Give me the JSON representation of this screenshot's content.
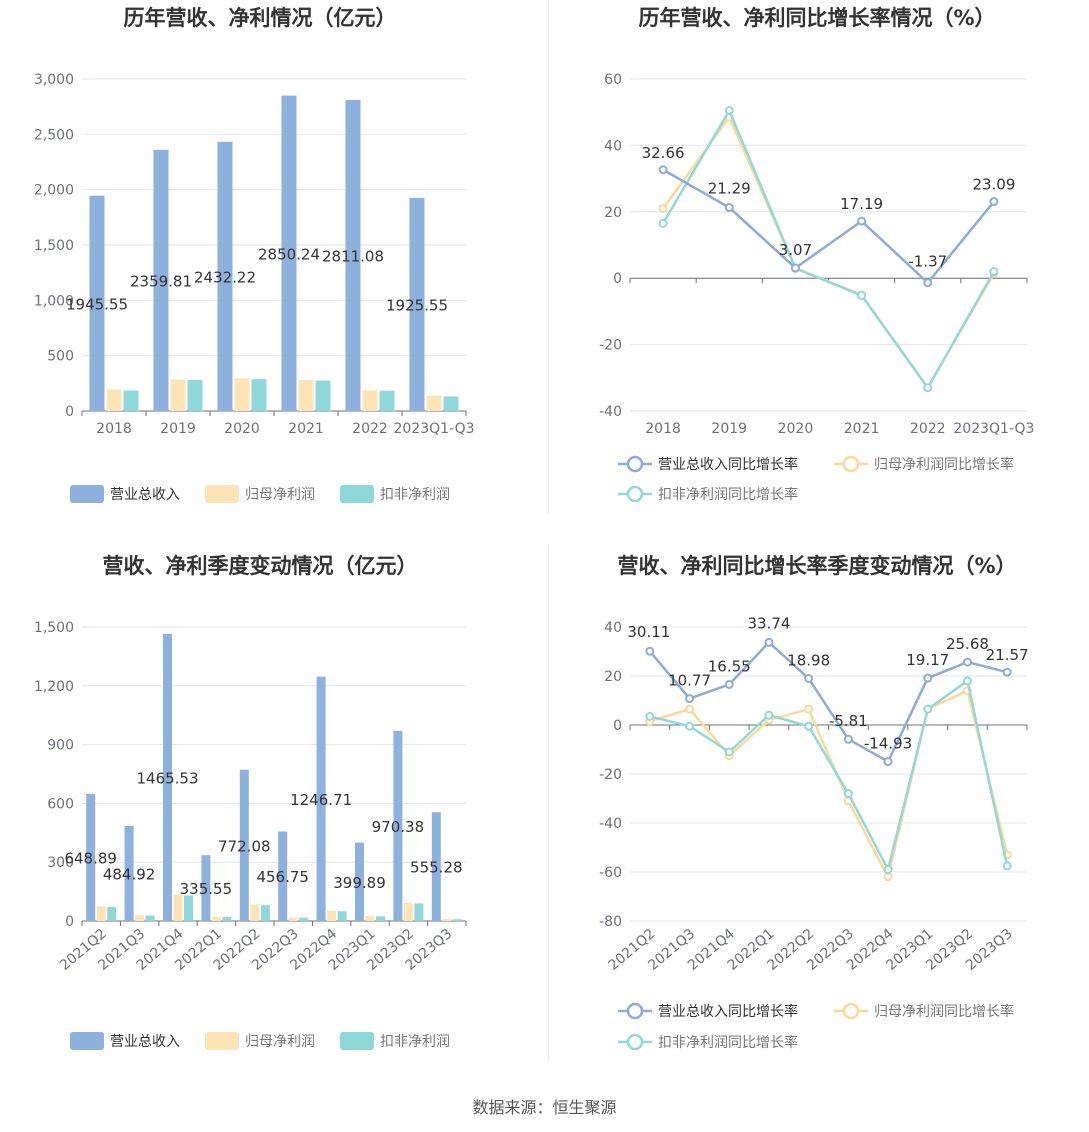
{
  "colors": {
    "revenue": "#8eb0dd",
    "net_profit": "#fde4b6",
    "deducted_profit": "#8fd8d9",
    "revenue_line": "#8eaadb",
    "net_line": "#fdd89a",
    "deducted_line": "#93d8d6"
  },
  "source_text": "数据来源：恒生聚源",
  "chart_data": [
    {
      "type": "bar",
      "title": "历年营收、净利情况（亿元）",
      "categories": [
        "2018",
        "2019",
        "2020",
        "2021",
        "2022",
        "2023Q1-Q3"
      ],
      "ylim": [
        0,
        3000
      ],
      "yticks": [
        "0",
        "500",
        "1,000",
        "1,500",
        "2,000",
        "2,500",
        "3,000"
      ],
      "series": [
        {
          "name": "营业总收入",
          "values": [
            1945.55,
            2359.81,
            2432.22,
            2850.24,
            2811.08,
            1925.55
          ],
          "labels": [
            "1945.55",
            "2359.81",
            "2432.22",
            "2850.24",
            "2811.08",
            "1925.55"
          ]
        },
        {
          "name": "归母净利润",
          "values": [
            195,
            285,
            295,
            280,
            188,
            140
          ]
        },
        {
          "name": "扣非净利润",
          "values": [
            185,
            280,
            288,
            275,
            183,
            132
          ]
        }
      ]
    },
    {
      "type": "line",
      "title": "历年营收、净利同比增长率情况（%）",
      "categories": [
        "2018",
        "2019",
        "2020",
        "2021",
        "2022",
        "2023Q1-Q3"
      ],
      "ylim": [
        -40,
        60
      ],
      "yticks": [
        "-40",
        "-20",
        "0",
        "20",
        "40",
        "60"
      ],
      "series": [
        {
          "name": "营业总收入同比增长率",
          "values": [
            32.66,
            21.29,
            3.07,
            17.19,
            -1.37,
            23.09
          ],
          "labels": [
            "32.66",
            "21.29",
            "3.07",
            "17.19",
            "-1.37",
            "23.09"
          ]
        },
        {
          "name": "归母净利润同比增长率",
          "values": [
            21,
            48.5,
            3,
            -5,
            -33,
            1.5
          ]
        },
        {
          "name": "扣非净利润同比增长率",
          "values": [
            16.5,
            50.5,
            3,
            -5.2,
            -33,
            2
          ]
        }
      ]
    },
    {
      "type": "bar",
      "title": "营收、净利季度变动情况（亿元）",
      "categories": [
        "2021Q2",
        "2021Q3",
        "2021Q4",
        "2022Q1",
        "2022Q2",
        "2022Q3",
        "2022Q4",
        "2023Q1",
        "2023Q2",
        "2023Q3"
      ],
      "ylim": [
        0,
        1500
      ],
      "yticks": [
        "0",
        "300",
        "600",
        "900",
        "1,200",
        "1,500"
      ],
      "series": [
        {
          "name": "营业总收入",
          "values": [
            648.89,
            484.92,
            1465.53,
            335.55,
            772.08,
            456.75,
            1246.71,
            399.89,
            970.38,
            555.28
          ],
          "labels": [
            "648.89",
            "484.92",
            "1465.53",
            "335.55",
            "772.08",
            "456.75",
            "1246.71",
            "399.89",
            "970.38",
            "555.28"
          ]
        },
        {
          "name": "归母净利润",
          "values": [
            75,
            30,
            135,
            22,
            85,
            18,
            52,
            25,
            93,
            10
          ]
        },
        {
          "name": "扣非净利润",
          "values": [
            72,
            28,
            130,
            20,
            80,
            17,
            50,
            24,
            90,
            9
          ]
        }
      ]
    },
    {
      "type": "line",
      "title": "营收、净利同比增长率季度变动情况（%）",
      "categories": [
        "2021Q2",
        "2021Q3",
        "2021Q4",
        "2022Q1",
        "2022Q2",
        "2022Q3",
        "2022Q4",
        "2023Q1",
        "2023Q2",
        "2023Q3"
      ],
      "ylim": [
        -80,
        40
      ],
      "yticks": [
        "-80",
        "-60",
        "-40",
        "-20",
        "0",
        "20",
        "40"
      ],
      "series": [
        {
          "name": "营业总收入同比增长率",
          "values": [
            30.11,
            10.77,
            16.55,
            33.74,
            18.98,
            -5.81,
            -14.93,
            19.17,
            25.68,
            21.57
          ],
          "labels": [
            "30.11",
            "10.77",
            "16.55",
            "33.74",
            "18.98",
            "-5.81",
            "-14.93",
            "19.17",
            "25.68",
            "21.57"
          ]
        },
        {
          "name": "归母净利润同比增长率",
          "values": [
            1.5,
            6.5,
            -12.5,
            2,
            6.5,
            -31,
            -62,
            6.5,
            14,
            -53
          ]
        },
        {
          "name": "扣非净利润同比增长率",
          "values": [
            3.5,
            -0.5,
            -11,
            4,
            -0.5,
            -28,
            -59,
            6.5,
            18,
            -57.5
          ]
        }
      ]
    }
  ]
}
